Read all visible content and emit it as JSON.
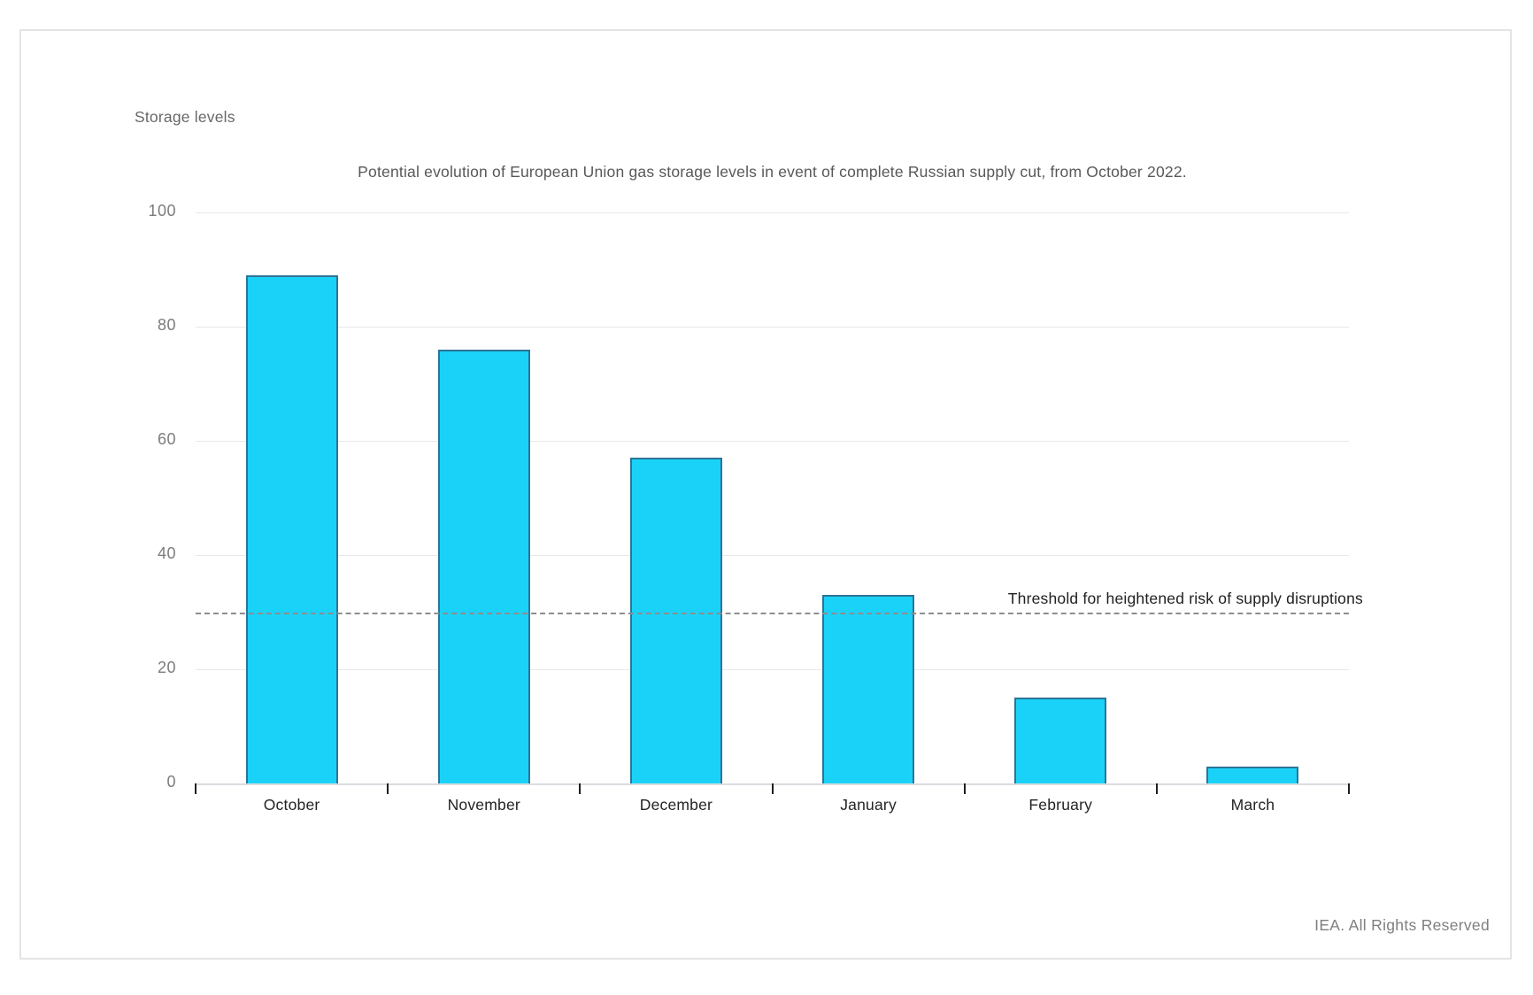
{
  "page": {
    "footer": "IEA. All Rights Reserved"
  },
  "chart_data": {
    "type": "bar",
    "title": "Potential evolution of European Union gas storage levels in event of complete Russian supply cut, from October 2022.",
    "ylabel": "Storage levels",
    "xlabel": "",
    "categories": [
      "October",
      "November",
      "December",
      "January",
      "February",
      "March"
    ],
    "values": [
      89,
      76,
      57,
      33,
      15,
      3
    ],
    "ylim": [
      0,
      100
    ],
    "yticks": [
      0,
      20,
      40,
      60,
      80,
      100
    ],
    "grid": "horizontal",
    "legend": "none",
    "bar_color": "#1ad2f8",
    "bar_border_color": "#2e7396",
    "threshold": {
      "value": 30,
      "label": "Threshold for heightened risk of supply disruptions"
    }
  }
}
